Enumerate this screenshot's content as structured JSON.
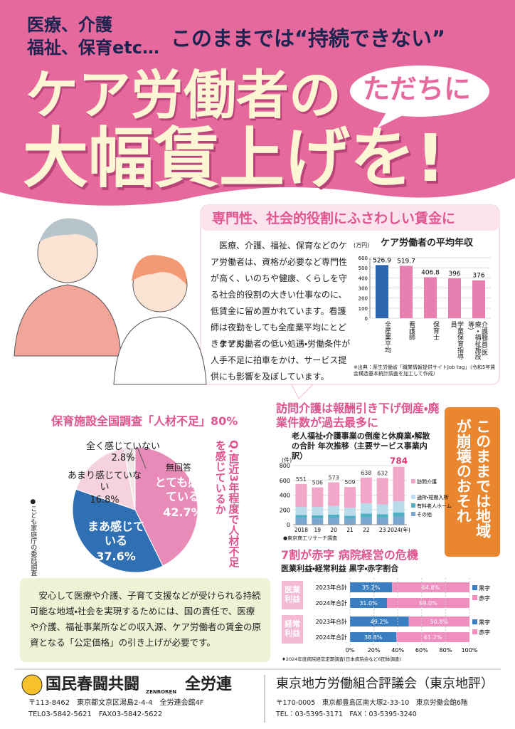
{
  "header": {
    "line1": "医療、介護",
    "line2": "福祉、保育etc…",
    "slogan": "このままでは“持続できない”",
    "title1": "ケア労働者の",
    "bubble": "ただちに",
    "title2": "大幅賃上げを!"
  },
  "section1": {
    "heading": "専門性、社会的役割にふさわしい賃金に",
    "paragraphs": [
      "医療、介護、福祉、保育などのケア労働者は、資格が必要など専門性が高く、いのちや健康、くらしを守る社会的役割の大きい仕事なのに、低賃金に留め置かれています。看護師は夜勤をしても全産業平均にとどきません。",
      "ケア労働者の低い処遇・労働条件が人手不足に拍車をかけ、サービス提供にも影響を及ぼしています。"
    ]
  },
  "wage_chart": {
    "type": "bar",
    "title": "ケア労働者の平均年収",
    "unit": "(万円)",
    "categories": [
      "全産業平均",
      "看護師",
      "保育士",
      "学童保育指導員",
      "介護職員(医療・福祉施設等)"
    ],
    "values": [
      526.9,
      519.7,
      406.8,
      396,
      376
    ],
    "colors": [
      "#2d66ad",
      "#e87fb1",
      "#e87fb1",
      "#e87fb1",
      "#e87fb1"
    ],
    "ylim": [
      0,
      600
    ],
    "yticks": [
      0,
      100,
      200,
      300,
      400,
      500,
      600
    ],
    "grid": true,
    "source": "※出典：厚生労働省「職業情報提供サイトJob tag」（令和5年賃金構造基本統計調査を加工して作成）"
  },
  "pie_chart": {
    "type": "pie",
    "title": "保育施設全国調査「人材不足」80%",
    "question": "Q.直近3年程度で人材不足を感じているか",
    "categories": [
      "とても感じている",
      "まあ感じている",
      "あまり感じていない",
      "全く感じていない",
      "無回答"
    ],
    "values": [
      42.7,
      37.6,
      16.8,
      2.8,
      0.1
    ],
    "value_labels": [
      "42.7%",
      "37.6%",
      "16.8%",
      "2.8%",
      null
    ],
    "colors": [
      "#e98bb8",
      "#2f6fb3",
      "#f6d2df",
      "#f1e6e8",
      "#cccccc"
    ],
    "source": "●こども家庭庁の委託調査"
  },
  "care_chart": {
    "type": "stacked-bar",
    "heading": "訪問介護は報酬引き下げ倒産・廃業件数が過去最多に",
    "title": "老人福祉・介護事業の倒産と休廃業・解散の合計 年次推移（主要サービス事業内訳）",
    "unit": "(件)",
    "categories": [
      "2018",
      "19",
      "20",
      "21",
      "22",
      "23",
      "2024(年)"
    ],
    "totals": [
      551,
      506,
      573,
      509,
      638,
      632,
      784
    ],
    "series": [
      {
        "name": "その他",
        "color": "#7aa6d0",
        "values": [
          90,
          85,
          90,
          80,
          100,
          95,
          110
        ]
      },
      {
        "name": "有料老人ホーム",
        "color": "#4fb0c2",
        "values": [
          40,
          40,
          45,
          40,
          50,
          45,
          55
        ]
      },
      {
        "name": "通所・短期入所",
        "color": "#b8dcec",
        "values": [
          110,
          115,
          120,
          110,
          140,
          135,
          150
        ]
      },
      {
        "name": "訪問介護",
        "color": "#f2a7c8",
        "values": [
          311,
          266,
          318,
          279,
          348,
          357,
          469
        ]
      }
    ],
    "ylim": [
      0,
      800
    ],
    "yticks": [
      0,
      200,
      400,
      600,
      800
    ],
    "grid": true,
    "source": "●東京商工リサーチ調査"
  },
  "side_note": "このままでは地域が崩壊のおそれ",
  "hospital_chart": {
    "type": "stacked-barh",
    "heading": "7割が赤字 病院経営の危機",
    "subtitle": "医業利益・経常利益 黒字・赤字割合",
    "groups": [
      "医業利益",
      "経常利益"
    ],
    "categories": [
      "2023年合計",
      "2024年合計",
      "2023年合計",
      "2024年合計"
    ],
    "series": [
      {
        "name": "黒字",
        "color": "#3a7ec2",
        "values": [
          35.2,
          31.0,
          49.2,
          38.8
        ],
        "value_labels": [
          "35.2%",
          "31.0%",
          "49.2%",
          "38.8%"
        ]
      },
      {
        "name": "赤字",
        "color": "#ee8fbf",
        "values": [
          64.8,
          69.0,
          50.8,
          61.2
        ],
        "value_labels": [
          "64.8%",
          "69.0%",
          "50.8%",
          "61.2%"
        ]
      }
    ],
    "xlim": [
      0,
      100
    ],
    "xticks": [
      {
        "value": 0,
        "label": "0%"
      },
      {
        "value": 20,
        "label": "20%"
      },
      {
        "value": 40,
        "label": "40%"
      },
      {
        "value": 60,
        "label": "60%"
      },
      {
        "value": 80,
        "label": "80%"
      },
      {
        "value": 100,
        "label": "100%"
      }
    ],
    "source": "♦2024年度病院経営定期調査(日本病院会など6団体調査)"
  },
  "message": "安心して医療や介護、子育て支援などが受けられる持続可能な地域・社会を実現するためには、国の責任で、医療や介護、福祉事業所などの収入源、ケア労働者の賃金の原資となる「公定価格」の引き上げが必要です。",
  "footer": {
    "left": {
      "org1": "国民春闘共闘",
      "org2": "全労連",
      "org2_en": "ZENROREN",
      "address": "〒113-8462　東京都文京区湯島2-4-4　全労連会館4F",
      "tel": "TEL03-5842-5621　FAX03-5842-5622"
    },
    "right": {
      "org": "東京地方労働組合評議会（東京地評）",
      "address": "〒170-0005　東京都豊島区南大塚2-33-10　東京労働会館6階",
      "tel": "TEL：03-5395-3171　FAX：03-5395-3240"
    }
  }
}
